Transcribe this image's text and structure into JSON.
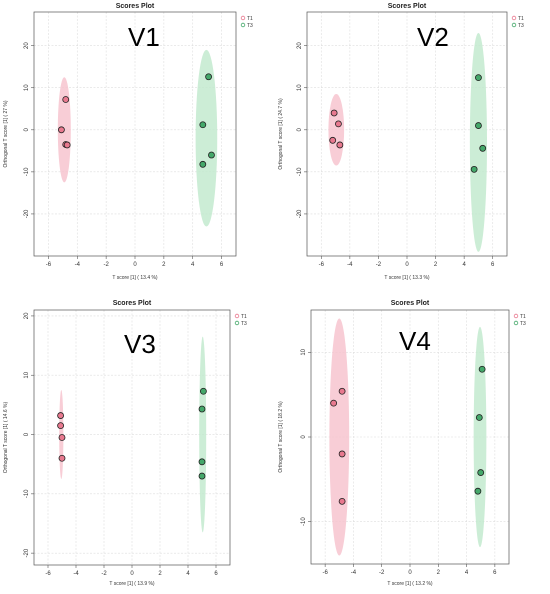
{
  "chart_data": [
    {
      "type": "scatter",
      "title": "Scores Plot",
      "panel_label": "V1",
      "xlabel": "T score [1] ( 13.4 %)",
      "ylabel": "Orthogonal T score [1] ( 27 %)",
      "xlim": [
        -7,
        7
      ],
      "ylim": [
        -30,
        28
      ],
      "xticks": [
        "-6",
        "-4",
        "-2",
        "0",
        "2",
        "4",
        "6"
      ],
      "yticks": [
        "20",
        "10",
        "0",
        "-10",
        "-20"
      ],
      "legend": "top-right",
      "grid": true,
      "series": [
        {
          "name": "T1",
          "color": "#e8798f",
          "ellipse_color": "#f6c0cc",
          "points": [
            [
              -4.8,
              7.2
            ],
            [
              -5.1,
              0
            ],
            [
              -4.8,
              -3.5
            ],
            [
              -4.7,
              -3.6
            ]
          ],
          "ellipse": {
            "cx": -4.9,
            "cy": 0,
            "rx": 0.45,
            "ry": 12.5
          }
        },
        {
          "name": "T3",
          "color": "#44a86a",
          "ellipse_color": "#bfe8cc",
          "points": [
            [
              5.1,
              12.6
            ],
            [
              4.7,
              1.2
            ],
            [
              5.3,
              -6
            ],
            [
              4.7,
              -8.2
            ]
          ],
          "ellipse": {
            "cx": 4.95,
            "cy": -2,
            "rx": 0.75,
            "ry": 21
          }
        }
      ]
    },
    {
      "type": "scatter",
      "title": "Scores Plot",
      "panel_label": "V2",
      "xlabel": "T score [1] ( 13.3 %)",
      "ylabel": "Orthogonal T score [1] ( 24.7 %)",
      "xlim": [
        -7,
        7
      ],
      "ylim": [
        -30,
        28
      ],
      "xticks": [
        "-6",
        "-4",
        "-2",
        "0",
        "2",
        "4",
        "6"
      ],
      "yticks": [
        "20",
        "10",
        "0",
        "-10",
        "-20"
      ],
      "legend": "top-right",
      "grid": true,
      "series": [
        {
          "name": "T1",
          "color": "#e8798f",
          "ellipse_color": "#f6c0cc",
          "points": [
            [
              -5.1,
              4
            ],
            [
              -4.8,
              1.4
            ],
            [
              -5.2,
              -2.5
            ],
            [
              -4.7,
              -3.6
            ]
          ],
          "ellipse": {
            "cx": -4.95,
            "cy": 0,
            "rx": 0.55,
            "ry": 8.5
          }
        },
        {
          "name": "T3",
          "color": "#44a86a",
          "ellipse_color": "#bfe8cc",
          "points": [
            [
              5.0,
              12.4
            ],
            [
              5.0,
              1
            ],
            [
              5.3,
              -4.4
            ],
            [
              4.7,
              -9.4
            ]
          ],
          "ellipse": {
            "cx": 5.0,
            "cy": -3,
            "rx": 0.6,
            "ry": 26
          }
        }
      ]
    },
    {
      "type": "scatter",
      "title": "Scores Plot",
      "panel_label": "V3",
      "xlabel": "T score [1] ( 13.9 %)",
      "ylabel": "Orthogonal T score [1] ( 14.6 %)",
      "xlim": [
        -7,
        7
      ],
      "ylim": [
        -22,
        21
      ],
      "xticks": [
        "-6",
        "-4",
        "-2",
        "0",
        "2",
        "4",
        "6"
      ],
      "yticks": [
        "20",
        "10",
        "0",
        "-10",
        "-20"
      ],
      "legend": "top-right",
      "grid": true,
      "series": [
        {
          "name": "T1",
          "color": "#e8798f",
          "ellipse_color": "#f6c0cc",
          "points": [
            [
              -5.1,
              3.2
            ],
            [
              -5.1,
              1.5
            ],
            [
              -5.0,
              -0.5
            ],
            [
              -5.0,
              -4
            ]
          ],
          "ellipse": {
            "cx": -5.05,
            "cy": 0,
            "rx": 0.15,
            "ry": 7.5
          }
        },
        {
          "name": "T3",
          "color": "#44a86a",
          "ellipse_color": "#bfe8cc",
          "points": [
            [
              5.1,
              7.3
            ],
            [
              5.0,
              4.3
            ],
            [
              5.0,
              -4.6
            ],
            [
              5.0,
              -7
            ]
          ],
          "ellipse": {
            "cx": 5.05,
            "cy": 0,
            "rx": 0.25,
            "ry": 16.5
          }
        }
      ]
    },
    {
      "type": "scatter",
      "title": "Scores Plot",
      "panel_label": "V4",
      "xlabel": "T score [1] ( 13.2 %)",
      "ylabel": "Orthogonal T score [1] ( 18.2 %)",
      "xlim": [
        -7,
        7
      ],
      "ylim": [
        -15,
        15
      ],
      "xticks": [
        "-6",
        "-4",
        "-2",
        "0",
        "2",
        "4",
        "6"
      ],
      "yticks": [
        "10",
        "0",
        "-10"
      ],
      "legend": "top-right",
      "grid": true,
      "series": [
        {
          "name": "T1",
          "color": "#e8798f",
          "ellipse_color": "#f6c0cc",
          "points": [
            [
              -5.4,
              4
            ],
            [
              -4.8,
              5.4
            ],
            [
              -4.8,
              -2
            ],
            [
              -4.8,
              -7.6
            ]
          ],
          "ellipse": {
            "cx": -5.0,
            "cy": 0,
            "rx": 0.7,
            "ry": 14
          }
        },
        {
          "name": "T3",
          "color": "#44a86a",
          "ellipse_color": "#bfe8cc",
          "points": [
            [
              5.1,
              8
            ],
            [
              4.9,
              2.3
            ],
            [
              5.0,
              -4.2
            ],
            [
              4.8,
              -6.4
            ]
          ],
          "ellipse": {
            "cx": 4.95,
            "cy": 0,
            "rx": 0.45,
            "ry": 13
          }
        }
      ]
    }
  ]
}
